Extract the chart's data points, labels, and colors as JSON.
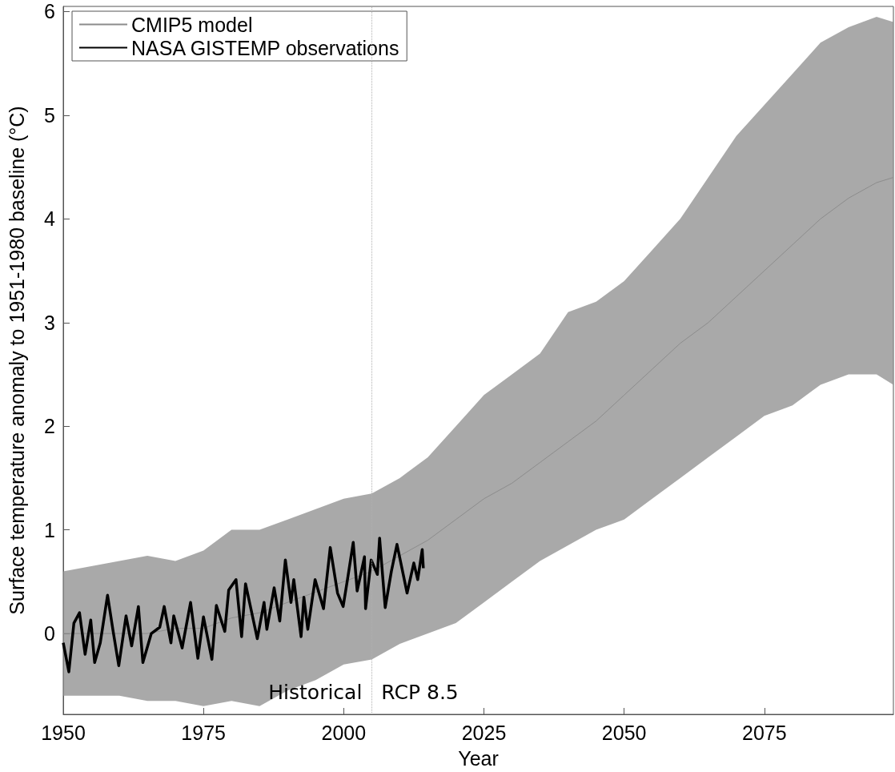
{
  "chart_data": {
    "type": "line",
    "xlabel": "Year",
    "ylabel": "Surface temperature anomaly to 1951-1980 baseline (°C)",
    "xlim": [
      1950,
      2098
    ],
    "xticks": [
      1950,
      1975,
      2000,
      2025,
      2050,
      2075
    ],
    "ylim": [
      -0.78,
      6.05
    ],
    "yticks": [
      0,
      1,
      2,
      3,
      4,
      5,
      6
    ],
    "grid": false,
    "legend": "top left",
    "marker": "none",
    "line_style": "solid",
    "ref_lines": [
      {
        "axis": "x",
        "value": 2005,
        "color": "#b0b0b0",
        "line_style": "dotted"
      }
    ],
    "annotations": [
      "Historical",
      "RCP 8.5"
    ],
    "series": [
      {
        "name": "CMIP5 model",
        "color": "#8c8c8c",
        "x": [
          1950,
          1955,
          1960,
          1965,
          1970,
          1975,
          1980,
          1985,
          1990,
          1995,
          2000,
          2005,
          2010,
          2015,
          2020,
          2025,
          2030,
          2035,
          2040,
          2045,
          2050,
          2055,
          2060,
          2065,
          2070,
          2075,
          2080,
          2085,
          2090,
          2095,
          2098
        ],
        "values": [
          0,
          0,
          0,
          0,
          0.05,
          0.05,
          0.15,
          0.2,
          0.3,
          0.4,
          0.5,
          0.6,
          0.75,
          0.9,
          1.1,
          1.3,
          1.45,
          1.65,
          1.85,
          2.05,
          2.3,
          2.55,
          2.8,
          3,
          3.25,
          3.5,
          3.75,
          4,
          4.2,
          4.35,
          4.4
        ],
        "lower": [
          -0.6,
          -0.6,
          -0.6,
          -0.65,
          -0.65,
          -0.7,
          -0.65,
          -0.7,
          -0.55,
          -0.45,
          -0.3,
          -0.25,
          -0.1,
          0,
          0.1,
          0.3,
          0.5,
          0.7,
          0.85,
          1,
          1.1,
          1.3,
          1.5,
          1.7,
          1.9,
          2.1,
          2.2,
          2.4,
          2.5,
          2.5,
          2.4
        ],
        "upper": [
          0.6,
          0.65,
          0.7,
          0.75,
          0.7,
          0.8,
          1,
          1,
          1.1,
          1.2,
          1.3,
          1.35,
          1.5,
          1.7,
          2,
          2.3,
          2.5,
          2.7,
          3.1,
          3.2,
          3.4,
          3.7,
          4,
          4.4,
          4.8,
          5.1,
          5.4,
          5.7,
          5.85,
          5.95,
          5.9
        ]
      },
      {
        "name": "NASA GISTEMP observations",
        "color": "#000000",
        "x": [
          1950,
          1951,
          1951.9,
          1952.9,
          1953.9,
          1954.9,
          1955.6,
          1956.6,
          1957.9,
          1958.9,
          1959.9,
          1961.2,
          1962.2,
          1963.4,
          1964.2,
          1965.7,
          1967.2,
          1968,
          1969.2,
          1969.7,
          1971.2,
          1972.7,
          1974,
          1975,
          1976.5,
          1977.3,
          1978.8,
          1979.5,
          1980.8,
          1981.8,
          1982.5,
          1984.6,
          1985.8,
          1986.3,
          1987.6,
          1988.6,
          1989.6,
          1990.6,
          1991.1,
          1992.4,
          1992.9,
          1993.6,
          1994.9,
          1996.4,
          1997.6,
          1998.9,
          1999.9,
          2000.7,
          2001.7,
          2002.4,
          2003.7,
          2003.9,
          2004.9,
          2006,
          2006.4,
          2007.4,
          2008.5,
          2009.5,
          2011.3,
          2012.5,
          2013.2,
          2014,
          2014.2
        ],
        "values": [
          -0.09,
          -0.37,
          0.1,
          0.2,
          -0.2,
          0.13,
          -0.28,
          -0.09,
          0.37,
          0.02,
          -0.31,
          0.17,
          -0.12,
          0.26,
          -0.28,
          0,
          0.06,
          0.26,
          -0.09,
          0.17,
          -0.14,
          0.3,
          -0.24,
          0.16,
          -0.25,
          0.27,
          0.02,
          0.42,
          0.52,
          -0.03,
          0.48,
          -0.05,
          0.3,
          0.04,
          0.44,
          0.12,
          0.71,
          0.3,
          0.52,
          -0.03,
          0.35,
          0.04,
          0.52,
          0.24,
          0.83,
          0.39,
          0.26,
          0.53,
          0.88,
          0.41,
          0.74,
          0.24,
          0.71,
          0.57,
          0.92,
          0.25,
          0.6,
          0.86,
          0.39,
          0.68,
          0.52,
          0.81,
          0.63
        ]
      }
    ]
  }
}
